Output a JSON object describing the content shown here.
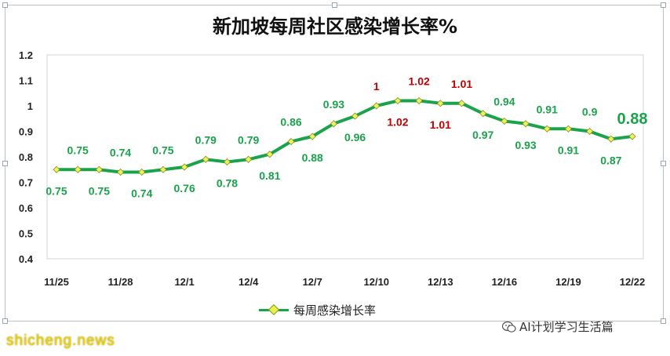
{
  "chart_data": {
    "type": "line",
    "title": "新加坡每周社区感染增长率%",
    "xlabel": "",
    "ylabel": "",
    "ylim": [
      0.4,
      1.2
    ],
    "yticks": [
      "0.4",
      "0.5",
      "0.6",
      "0.7",
      "0.8",
      "0.9",
      "1",
      "1.1",
      "1.2"
    ],
    "x_tick_labels": [
      "11/25",
      "11/28",
      "12/1",
      "12/4",
      "12/7",
      "12/10",
      "12/13",
      "12/16",
      "12/19",
      "12/22"
    ],
    "x": [
      "11/25",
      "11/26",
      "11/27",
      "11/28",
      "11/29",
      "11/30",
      "12/1",
      "12/2",
      "12/3",
      "12/4",
      "12/5",
      "12/6",
      "12/7",
      "12/8",
      "12/9",
      "12/10",
      "12/11",
      "12/12",
      "12/13",
      "12/14",
      "12/15",
      "12/16",
      "12/17",
      "12/18",
      "12/19",
      "12/20",
      "12/21",
      "12/22"
    ],
    "series": [
      {
        "name": "每周感染增长率",
        "color": "#1aa34a",
        "values": [
          0.75,
          0.75,
          0.75,
          0.74,
          0.74,
          0.75,
          0.76,
          0.79,
          0.78,
          0.79,
          0.81,
          0.86,
          0.88,
          0.93,
          0.96,
          1.0,
          1.02,
          1.02,
          1.01,
          1.01,
          0.97,
          0.94,
          0.93,
          0.91,
          0.91,
          0.9,
          0.87,
          0.88
        ],
        "labels": [
          "0.75",
          "0.75",
          "0.75",
          "0.74",
          "0.74",
          "0.75",
          "0.76",
          "0.79",
          "0.78",
          "0.79",
          "0.81",
          "0.86",
          "0.88",
          "0.93",
          "0.96",
          "1",
          "1.02",
          "1.02",
          "1.01",
          "1.01",
          "0.97",
          "0.94",
          "0.93",
          "0.91",
          "0.91",
          "0.9",
          "0.87",
          "0.88"
        ],
        "label_colors": {
          "green": "#1aa34a",
          "red": "#c00000"
        },
        "red_label_indices": [
          15,
          16,
          17,
          18,
          19
        ],
        "highlight_index": 27
      }
    ],
    "grid": false,
    "legend_position": "bottom"
  },
  "legend": {
    "label": "每周感染增长率"
  },
  "watermark": {
    "left": "shicheng.news",
    "right": "AI计划学习生活篇"
  }
}
